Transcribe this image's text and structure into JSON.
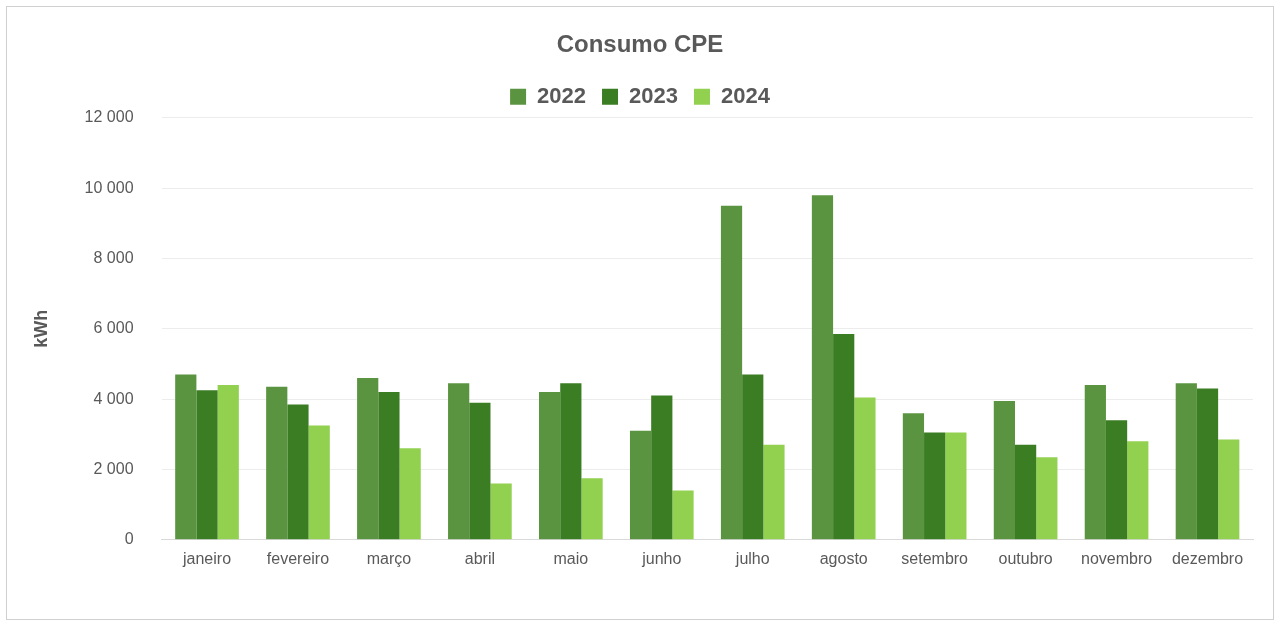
{
  "chart_data": {
    "type": "bar",
    "title": "Consumo CPE",
    "ylabel": "kWh",
    "categories": [
      "janeiro",
      "fevereiro",
      "março",
      "abril",
      "maio",
      "junho",
      "julho",
      "agosto",
      "setembro",
      "outubro",
      "novembro",
      "dezembro"
    ],
    "series": [
      {
        "name": "2022",
        "color": "#5a9440",
        "values": [
          4700,
          4350,
          4600,
          4450,
          4200,
          3100,
          9500,
          9800,
          3600,
          3950,
          4400,
          4450
        ]
      },
      {
        "name": "2023",
        "color": "#3b7d23",
        "values": [
          4250,
          3850,
          4200,
          3900,
          4450,
          4100,
          4700,
          5850,
          3050,
          2700,
          3400,
          4300
        ]
      },
      {
        "name": "2024",
        "color": "#92d050",
        "values": [
          4400,
          3250,
          2600,
          1600,
          1750,
          1400,
          2700,
          4050,
          3050,
          2350,
          2800,
          2850
        ]
      }
    ],
    "ylim": [
      0,
      12000
    ],
    "yticks": [
      0,
      {
        "value": 2000,
        "label": "2 000"
      },
      {
        "value": 4000,
        "label": "4 000"
      },
      {
        "value": 6000,
        "label": "6 000"
      },
      {
        "value": 8000,
        "label": "8 000"
      },
      {
        "value": 10000,
        "label": "10 000"
      },
      {
        "value": 12000,
        "label": "12 000"
      }
    ],
    "grid": "y",
    "legend": "top"
  }
}
